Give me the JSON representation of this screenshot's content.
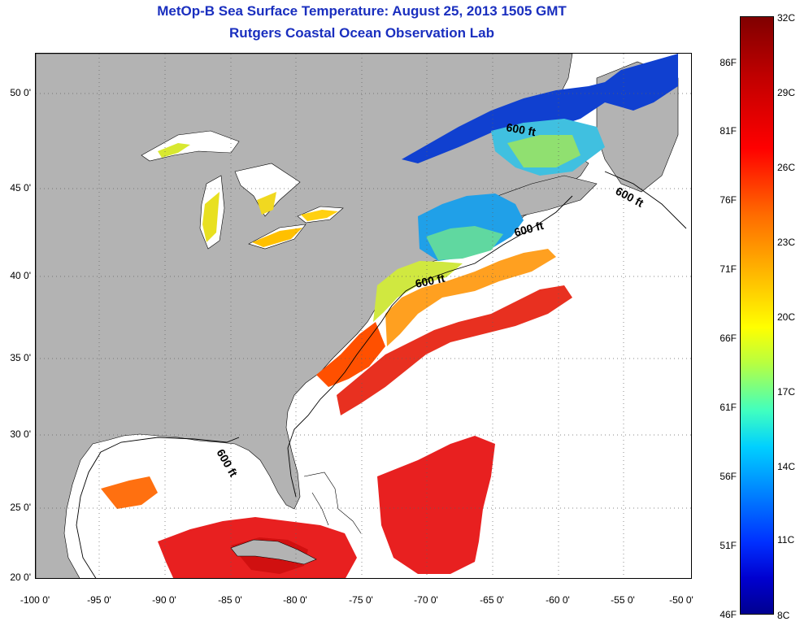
{
  "title_line1": "MetOp-B Sea Surface Temperature:  August 25, 2013 1505 GMT",
  "title_line2": "Rutgers Coastal Ocean Observation Lab",
  "y_ticks": [
    "50 0'",
    "45 0'",
    "40 0'",
    "35 0'",
    "30 0'",
    "25 0'",
    "20 0'"
  ],
  "x_ticks": [
    "-100 0'",
    "-95 0'",
    "-90 0'",
    "-85 0'",
    "-80 0'",
    "-75 0'",
    "-70 0'",
    "-65 0'",
    "-60 0'",
    "-55 0'",
    "-50 0'"
  ],
  "contour_label": "600 ft",
  "colorbar": {
    "celsius": [
      "32C",
      "29C",
      "26C",
      "23C",
      "20C",
      "17C",
      "14C",
      "11C",
      "8C"
    ],
    "fahrenheit": [
      "86F",
      "81F",
      "76F",
      "71F",
      "66F",
      "61F",
      "56F",
      "51F",
      "46F"
    ]
  },
  "colors": {
    "land": "#b3b3b3",
    "ocean_no_data": "#ffffff",
    "title": "#1a2fbf"
  }
}
